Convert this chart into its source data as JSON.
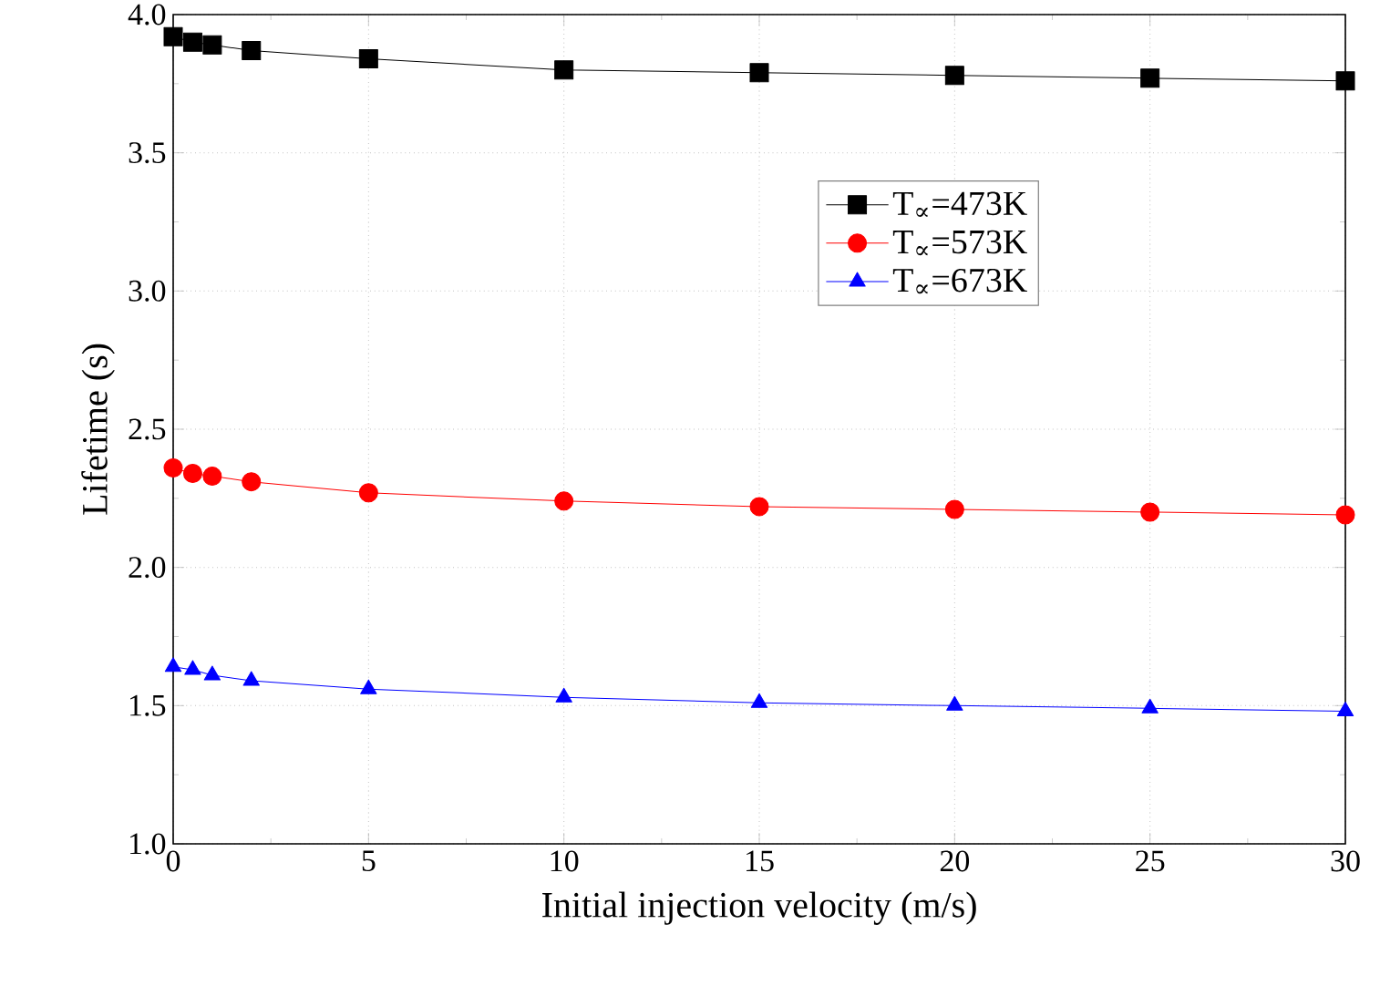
{
  "chart_data": {
    "type": "line",
    "xlabel": "Initial injection velocity (m/s)",
    "ylabel": "Lifetime (s)",
    "x": [
      0,
      0.5,
      1,
      2,
      5,
      10,
      15,
      20,
      25,
      30
    ],
    "xlim": [
      0,
      30
    ],
    "xticks": [
      0,
      5,
      10,
      15,
      20,
      25,
      30
    ],
    "ylim": [
      1.0,
      4.0
    ],
    "yticks": [
      {
        "value": 1.0,
        "label": "1.0"
      },
      {
        "value": 1.5,
        "label": "1.5"
      },
      {
        "value": 2.0,
        "label": "2.0"
      },
      {
        "value": 2.5,
        "label": "2.5"
      },
      {
        "value": 3.0,
        "label": "3.0"
      },
      {
        "value": 3.5,
        "label": "3.5"
      },
      {
        "value": 4.0,
        "label": "4.0"
      }
    ],
    "grid": true,
    "legend": "right",
    "series": [
      {
        "name": "T$_{∝}$=473K",
        "color": "#000000",
        "marker": "square",
        "values": [
          3.92,
          3.9,
          3.89,
          3.87,
          3.84,
          3.8,
          3.79,
          3.78,
          3.77,
          3.76
        ]
      },
      {
        "name": "T$_{∝}$=573K",
        "color": "#ff0000",
        "marker": "circle",
        "values": [
          2.36,
          2.34,
          2.33,
          2.31,
          2.27,
          2.24,
          2.22,
          2.21,
          2.2,
          2.19
        ]
      },
      {
        "name": "T$_{∝}$=673K",
        "color": "#0000ff",
        "marker": "triangle",
        "values": [
          1.64,
          1.63,
          1.61,
          1.59,
          1.56,
          1.53,
          1.51,
          1.5,
          1.49,
          1.48
        ]
      }
    ]
  }
}
